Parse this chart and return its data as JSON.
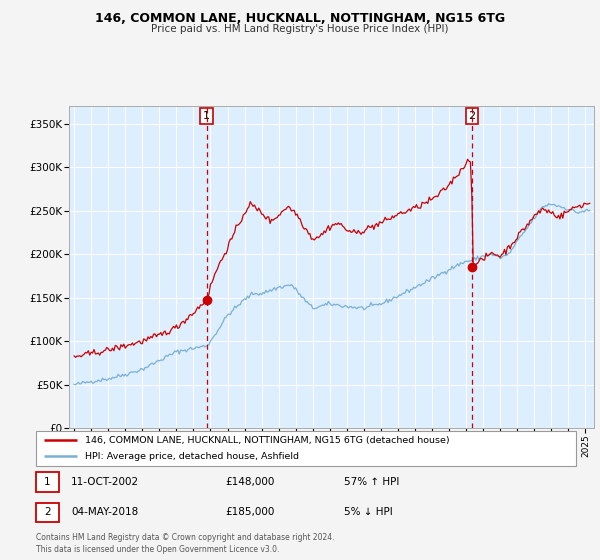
{
  "title": "146, COMMON LANE, HUCKNALL, NOTTINGHAM, NG15 6TG",
  "subtitle": "Price paid vs. HM Land Registry's House Price Index (HPI)",
  "xlim": [
    1994.7,
    2025.5
  ],
  "ylim": [
    0,
    370000
  ],
  "yticks": [
    0,
    50000,
    100000,
    150000,
    200000,
    250000,
    300000,
    350000
  ],
  "ytick_labels": [
    "£0",
    "£50K",
    "£100K",
    "£150K",
    "£200K",
    "£250K",
    "£300K",
    "£350K"
  ],
  "xtick_years": [
    1995,
    1996,
    1997,
    1998,
    1999,
    2000,
    2001,
    2002,
    2003,
    2004,
    2005,
    2006,
    2007,
    2008,
    2009,
    2010,
    2011,
    2012,
    2013,
    2014,
    2015,
    2016,
    2017,
    2018,
    2019,
    2020,
    2021,
    2022,
    2023,
    2024,
    2025
  ],
  "background_color": "#f4f4f4",
  "plot_bg_color": "#ddeeff",
  "grid_color": "#ffffff",
  "purchase1_x": 2002.78,
  "purchase1_y": 148000,
  "purchase2_x": 2018.34,
  "purchase2_y": 185000,
  "legend_line1": "146, COMMON LANE, HUCKNALL, NOTTINGHAM, NG15 6TG (detached house)",
  "legend_line2": "HPI: Average price, detached house, Ashfield",
  "note1_date": "11-OCT-2002",
  "note1_price": "£148,000",
  "note1_hpi": "57% ↑ HPI",
  "note2_date": "04-MAY-2018",
  "note2_price": "£185,000",
  "note2_hpi": "5% ↓ HPI",
  "footer": "Contains HM Land Registry data © Crown copyright and database right 2024.\nThis data is licensed under the Open Government Licence v3.0.",
  "hpi_color": "#7ab0d4",
  "price_color": "#cc0000",
  "dot_color": "#cc0000"
}
